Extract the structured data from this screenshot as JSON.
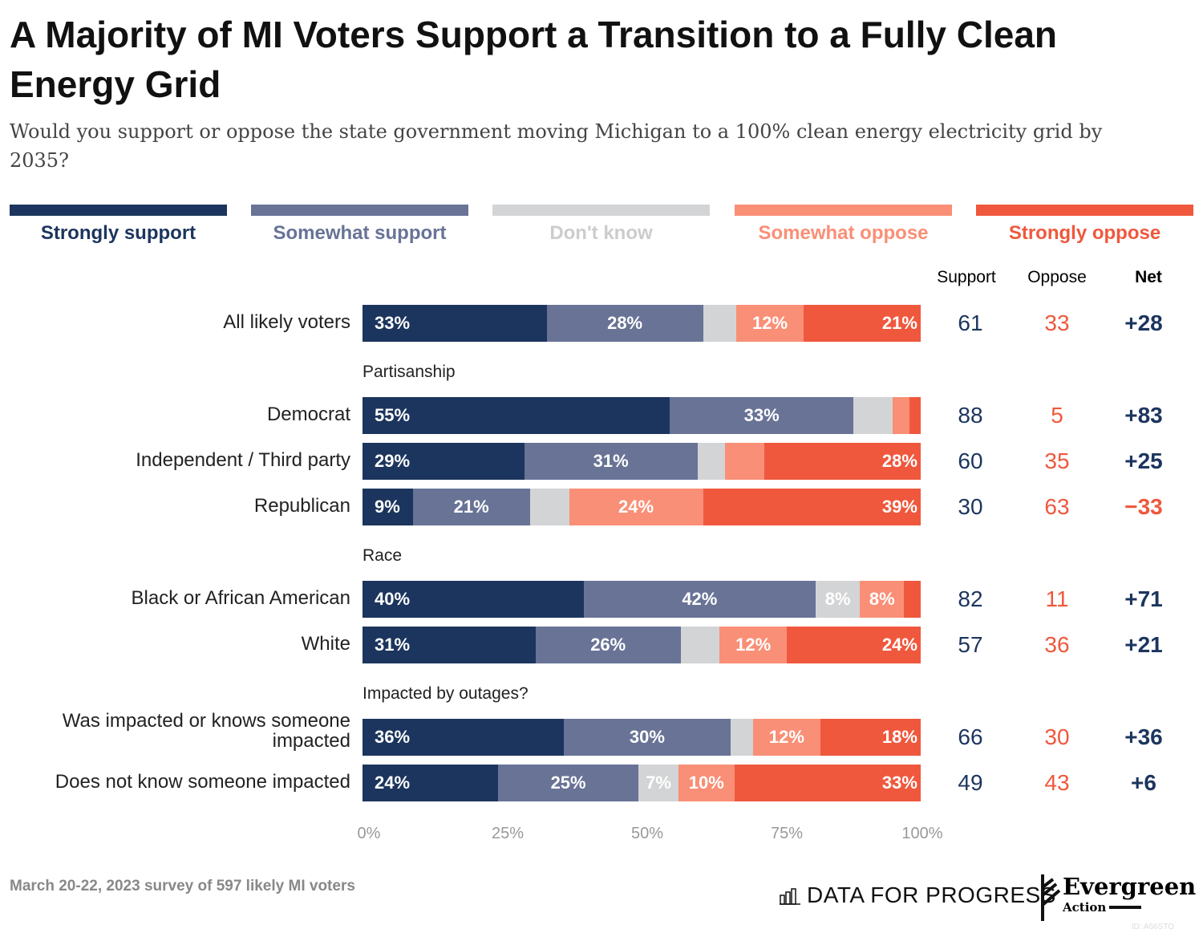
{
  "title": "A Majority of MI Voters Support a Transition to a Fully Clean Energy Grid",
  "subtitle": "Would you support or oppose the state government moving Michigan to a 100% clean energy electricity grid by 2035?",
  "legend": [
    {
      "label": "Strongly support",
      "color": "#1c355e"
    },
    {
      "label": "Somewhat support",
      "color": "#687396"
    },
    {
      "label": "Don't know",
      "color": "#d3d4d6"
    },
    {
      "label": "Somewhat oppose",
      "color": "#f98f76"
    },
    {
      "label": "Strongly oppose",
      "color": "#ef583d"
    }
  ],
  "columns": {
    "support": "Support",
    "oppose": "Oppose",
    "net": "Net"
  },
  "colors": {
    "support_text": "#1c355e",
    "oppose_text": "#ef583d",
    "positive_net": "#1c355e",
    "negative_net": "#ef583d"
  },
  "chart_data": {
    "type": "bar",
    "orientation": "horizontal",
    "stacked": true,
    "xlim": [
      0,
      100
    ],
    "xticks": [
      "0%",
      "25%",
      "50%",
      "75%",
      "100%"
    ],
    "series_names": [
      "Strongly support",
      "Somewhat support",
      "Don't know",
      "Somewhat oppose",
      "Strongly oppose"
    ],
    "groups": [
      {
        "label": "",
        "rows": [
          {
            "label": "All likely voters",
            "values": [
              33,
              28,
              6,
              12,
              21
            ],
            "labels": [
              "33%",
              "28%",
              null,
              "12%",
              "21%"
            ],
            "support": "61",
            "oppose": "33",
            "net": "+28"
          }
        ]
      },
      {
        "label": "Partisanship",
        "rows": [
          {
            "label": "Democrat",
            "values": [
              55,
              33,
              7,
              3,
              2
            ],
            "labels": [
              "55%",
              "33%",
              null,
              null,
              null
            ],
            "support": "88",
            "oppose": "5",
            "net": "+83"
          },
          {
            "label": "Independent / Third party",
            "values": [
              29,
              31,
              5,
              7,
              28
            ],
            "labels": [
              "29%",
              "31%",
              null,
              null,
              "28%"
            ],
            "support": "60",
            "oppose": "35",
            "net": "+25"
          },
          {
            "label": "Republican",
            "values": [
              9,
              21,
              7,
              24,
              39
            ],
            "labels": [
              "9%",
              "21%",
              null,
              "24%",
              "39%"
            ],
            "support": "30",
            "oppose": "63",
            "net": "−33"
          }
        ]
      },
      {
        "label": "Race",
        "rows": [
          {
            "label": "Black or African American",
            "values": [
              40,
              42,
              8,
              8,
              3
            ],
            "labels": [
              "40%",
              "42%",
              "8%",
              "8%",
              null
            ],
            "support": "82",
            "oppose": "11",
            "net": "+71"
          },
          {
            "label": "White",
            "values": [
              31,
              26,
              7,
              12,
              24
            ],
            "labels": [
              "31%",
              "26%",
              null,
              "12%",
              "24%"
            ],
            "support": "57",
            "oppose": "36",
            "net": "+21"
          }
        ]
      },
      {
        "label": "Impacted by outages?",
        "rows": [
          {
            "label": "Was impacted or knows someone impacted",
            "values": [
              36,
              30,
              4,
              12,
              18
            ],
            "labels": [
              "36%",
              "30%",
              null,
              "12%",
              "18%"
            ],
            "support": "66",
            "oppose": "30",
            "net": "+36"
          },
          {
            "label": "Does not know someone impacted",
            "values": [
              24,
              25,
              7,
              10,
              33
            ],
            "labels": [
              "24%",
              "25%",
              "7%",
              "10%",
              "33%"
            ],
            "support": "49",
            "oppose": "43",
            "net": "+6"
          }
        ]
      }
    ]
  },
  "footer": {
    "note": "March 20-22, 2023 survey of 597 likely MI voters",
    "logo1": "DATA FOR PROGRESS",
    "logo2": "Evergreen",
    "logo2_sub": "Action",
    "id": "ID: A66STO"
  }
}
